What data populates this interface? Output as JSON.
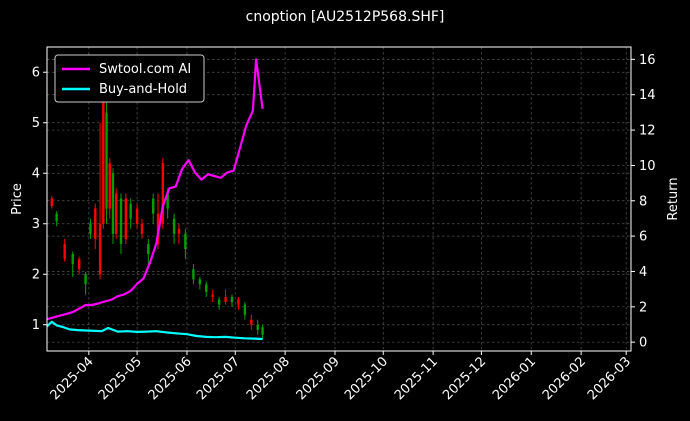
{
  "chart_data": {
    "type": "line",
    "title": "cnoption [AU2512P568.SHF]",
    "ylabel_left": "Price",
    "ylabel_right": "Return",
    "xlabel": "",
    "ylim_left": [
      0.48,
      6.5
    ],
    "ylim_right": [
      -0.5,
      16.7
    ],
    "left_ticks": [
      "1",
      "2",
      "3",
      "4",
      "5",
      "6"
    ],
    "right_ticks": [
      "0",
      "2",
      "4",
      "6",
      "8",
      "10",
      "12",
      "14",
      "16"
    ],
    "x_tick_labels": [
      "2025-04",
      "2025-05",
      "2025-06",
      "2025-07",
      "2025-08",
      "2025-09",
      "2025-10",
      "2025-11",
      "2025-12",
      "2026-01",
      "2026-02",
      "2026-03"
    ],
    "x_ticks": [
      "2025-04-01",
      "2025-05-01",
      "2025-06-01",
      "2025-07-01",
      "2025-08-01",
      "2025-09-01",
      "2025-10-01",
      "2025-11-01",
      "2025-12-01",
      "2026-01-01",
      "2026-02-01",
      "2026-03-01"
    ],
    "xlim": [
      "2025-03-06",
      "2026-03-04"
    ],
    "grid": true,
    "legend_position": "top-left",
    "background": "#000000",
    "series": [
      {
        "name": "Swtool.com AI",
        "axis": "right",
        "color": "#ff00ff",
        "x": [
          "2025-03-06",
          "2025-03-10",
          "2025-03-14",
          "2025-03-18",
          "2025-03-22",
          "2025-03-26",
          "2025-03-30",
          "2025-04-03",
          "2025-04-07",
          "2025-04-11",
          "2025-04-15",
          "2025-04-19",
          "2025-04-23",
          "2025-04-27",
          "2025-05-01",
          "2025-05-05",
          "2025-05-09",
          "2025-05-13",
          "2025-05-17",
          "2025-05-21",
          "2025-05-25",
          "2025-05-29",
          "2025-06-02",
          "2025-06-06",
          "2025-06-10",
          "2025-06-14",
          "2025-06-18",
          "2025-06-22",
          "2025-06-26",
          "2025-06-30",
          "2025-07-04",
          "2025-07-08",
          "2025-07-12",
          "2025-07-14",
          "2025-07-18"
        ],
        "values": [
          1.3,
          1.4,
          1.5,
          1.6,
          1.7,
          1.9,
          2.1,
          2.1,
          2.2,
          2.3,
          2.4,
          2.6,
          2.7,
          2.9,
          3.3,
          3.6,
          4.5,
          5.6,
          7.7,
          8.7,
          8.8,
          9.8,
          10.3,
          9.6,
          9.2,
          9.5,
          9.4,
          9.3,
          9.6,
          9.7,
          11.0,
          12.3,
          13.1,
          16.0,
          13.2
        ]
      },
      {
        "name": "Buy-and-Hold",
        "axis": "right",
        "color": "#00ffff",
        "x": [
          "2025-03-06",
          "2025-03-09",
          "2025-03-12",
          "2025-03-16",
          "2025-03-20",
          "2025-03-25",
          "2025-03-30",
          "2025-04-05",
          "2025-04-09",
          "2025-04-13",
          "2025-04-19",
          "2025-04-25",
          "2025-05-01",
          "2025-05-07",
          "2025-05-13",
          "2025-05-19",
          "2025-05-25",
          "2025-06-01",
          "2025-06-07",
          "2025-06-13",
          "2025-06-19",
          "2025-06-25",
          "2025-07-01",
          "2025-07-07",
          "2025-07-13",
          "2025-07-18"
        ],
        "values": [
          0.9,
          1.15,
          0.95,
          0.85,
          0.72,
          0.68,
          0.66,
          0.64,
          0.62,
          0.8,
          0.6,
          0.62,
          0.58,
          0.6,
          0.62,
          0.55,
          0.5,
          0.45,
          0.35,
          0.3,
          0.28,
          0.3,
          0.25,
          0.22,
          0.2,
          0.18
        ]
      }
    ],
    "candles": [
      {
        "date": "2025-03-09",
        "open": 3.35,
        "close": 3.5,
        "high": 3.55,
        "low": 3.3
      },
      {
        "date": "2025-03-12",
        "open": 3.2,
        "close": 3.05,
        "high": 3.25,
        "low": 2.95
      },
      {
        "date": "2025-03-17",
        "open": 2.3,
        "close": 2.6,
        "high": 2.7,
        "low": 2.25
      },
      {
        "date": "2025-03-22",
        "open": 2.4,
        "close": 2.2,
        "high": 2.45,
        "low": 1.95
      },
      {
        "date": "2025-03-26",
        "open": 2.1,
        "close": 2.3,
        "high": 2.35,
        "low": 2.0
      },
      {
        "date": "2025-03-30",
        "open": 2.0,
        "close": 1.8,
        "high": 2.05,
        "low": 1.6
      },
      {
        "date": "2025-04-02",
        "open": 3.0,
        "close": 2.8,
        "high": 3.1,
        "low": 2.7
      },
      {
        "date": "2025-04-05",
        "open": 2.7,
        "close": 3.3,
        "high": 3.4,
        "low": 2.5
      },
      {
        "date": "2025-04-08",
        "open": 2.0,
        "close": 3.0,
        "high": 5.0,
        "low": 1.9
      },
      {
        "date": "2025-04-10",
        "open": 3.0,
        "close": 5.9,
        "high": 6.1,
        "low": 2.9
      },
      {
        "date": "2025-04-12",
        "open": 5.2,
        "close": 3.3,
        "high": 5.4,
        "low": 3.0
      },
      {
        "date": "2025-04-14",
        "open": 3.3,
        "close": 4.2,
        "high": 4.3,
        "low": 3.1
      },
      {
        "date": "2025-04-16",
        "open": 4.0,
        "close": 2.8,
        "high": 4.1,
        "low": 2.6
      },
      {
        "date": "2025-04-18",
        "open": 2.8,
        "close": 3.6,
        "high": 3.7,
        "low": 2.7
      },
      {
        "date": "2025-04-21",
        "open": 3.5,
        "close": 2.6,
        "high": 3.6,
        "low": 2.4
      },
      {
        "date": "2025-04-24",
        "open": 2.7,
        "close": 3.5,
        "high": 3.6,
        "low": 2.6
      },
      {
        "date": "2025-04-27",
        "open": 3.4,
        "close": 3.1,
        "high": 3.5,
        "low": 2.9
      },
      {
        "date": "2025-05-01",
        "open": 3.0,
        "close": 3.3,
        "high": 3.4,
        "low": 2.9
      },
      {
        "date": "2025-05-04",
        "open": 2.8,
        "close": 3.0,
        "high": 3.1,
        "low": 2.7
      },
      {
        "date": "2025-05-08",
        "open": 2.6,
        "close": 2.4,
        "high": 2.7,
        "low": 2.2
      },
      {
        "date": "2025-05-11",
        "open": 3.5,
        "close": 3.2,
        "high": 3.6,
        "low": 3.0
      },
      {
        "date": "2025-05-14",
        "open": 2.6,
        "close": 3.2,
        "high": 3.6,
        "low": 2.5
      },
      {
        "date": "2025-05-17",
        "open": 3.0,
        "close": 4.2,
        "high": 4.3,
        "low": 2.9
      },
      {
        "date": "2025-05-20",
        "open": 3.6,
        "close": 3.3,
        "high": 3.7,
        "low": 3.1
      },
      {
        "date": "2025-05-24",
        "open": 3.1,
        "close": 2.8,
        "high": 3.2,
        "low": 2.6
      },
      {
        "date": "2025-05-27",
        "open": 2.8,
        "close": 2.9,
        "high": 3.0,
        "low": 2.6
      },
      {
        "date": "2025-05-31",
        "open": 2.8,
        "close": 2.5,
        "high": 2.9,
        "low": 2.3
      },
      {
        "date": "2025-06-05",
        "open": 2.1,
        "close": 1.9,
        "high": 2.2,
        "low": 1.8
      },
      {
        "date": "2025-06-09",
        "open": 1.9,
        "close": 1.8,
        "high": 1.95,
        "low": 1.7
      },
      {
        "date": "2025-06-13",
        "open": 1.8,
        "close": 1.65,
        "high": 1.85,
        "low": 1.55
      },
      {
        "date": "2025-06-17",
        "open": 1.55,
        "close": 1.6,
        "high": 1.7,
        "low": 1.45
      },
      {
        "date": "2025-06-21",
        "open": 1.5,
        "close": 1.4,
        "high": 1.55,
        "low": 1.3
      },
      {
        "date": "2025-06-25",
        "open": 1.45,
        "close": 1.55,
        "high": 1.7,
        "low": 1.4
      },
      {
        "date": "2025-06-29",
        "open": 1.55,
        "close": 1.45,
        "high": 1.6,
        "low": 1.35
      },
      {
        "date": "2025-07-03",
        "open": 1.4,
        "close": 1.5,
        "high": 1.55,
        "low": 1.3
      },
      {
        "date": "2025-07-07",
        "open": 1.4,
        "close": 1.2,
        "high": 1.45,
        "low": 1.1
      },
      {
        "date": "2025-07-11",
        "open": 1.0,
        "close": 1.1,
        "high": 1.2,
        "low": 0.9
      },
      {
        "date": "2025-07-15",
        "open": 1.0,
        "close": 0.9,
        "high": 1.1,
        "low": 0.8
      },
      {
        "date": "2025-07-18",
        "open": 0.95,
        "close": 0.8,
        "high": 1.0,
        "low": 0.72
      }
    ],
    "up_color": "#ff0000",
    "down_color": "#00a000"
  }
}
